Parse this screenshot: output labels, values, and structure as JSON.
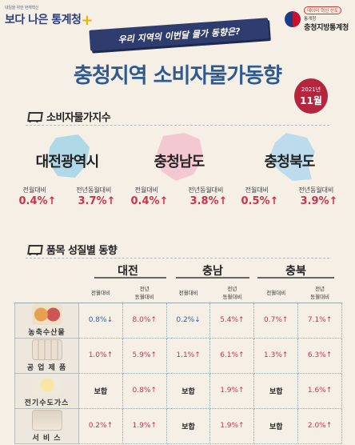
{
  "header": {
    "logo_small": "내일을 위한 현재혁신",
    "logo_main": "보다 나은 통계청",
    "logo_plus": "+",
    "badge": "데이터 혁신 선도",
    "org_small": "통계청",
    "org_name": "충청지방통계청"
  },
  "ribbon": "우리 지역의 이번달 물가 동향은?",
  "title": "충청지역 소비자물가동향",
  "date": {
    "year": "2021년",
    "month": "11월"
  },
  "cpi_section": {
    "heading": "소비자물가지수",
    "labels": {
      "mom": "전월대비",
      "yoy": "전년동월대비"
    },
    "regions": [
      {
        "name": "대전광역시",
        "mom": "0.4%↑",
        "yoy": "3.7%↑",
        "map_color": "#a9d7e8"
      },
      {
        "name": "충청남도",
        "mom": "0.4%↑",
        "yoy": "3.8%↑",
        "map_color": "#f3c4cf"
      },
      {
        "name": "충청북도",
        "mom": "0.5%↑",
        "yoy": "3.9%↑",
        "map_color": "#b6d9ee"
      }
    ]
  },
  "items_section": {
    "heading": "품목 성질별 동향",
    "regions": [
      "대전",
      "충남",
      "충북"
    ],
    "col_labels": {
      "mom": "전월대비",
      "yoy": "전년\n동월대비"
    },
    "rows": [
      {
        "name": "농축수산물",
        "icon": "farm-icon",
        "cells": [
          {
            "v": "0.8%↓",
            "t": "down"
          },
          {
            "v": "8.0%↑",
            "t": "up"
          },
          {
            "v": "0.2%↓",
            "t": "down"
          },
          {
            "v": "5.4%↑",
            "t": "up"
          },
          {
            "v": "0.7%↑",
            "t": "up"
          },
          {
            "v": "7.1%↑",
            "t": "up"
          }
        ]
      },
      {
        "name": "공 업 제 품",
        "icon": "industry-icon",
        "cells": [
          {
            "v": "1.0%↑",
            "t": "up"
          },
          {
            "v": "5.9%↑",
            "t": "up"
          },
          {
            "v": "1.1%↑",
            "t": "up"
          },
          {
            "v": "6.1%↑",
            "t": "up"
          },
          {
            "v": "1.3%↑",
            "t": "up"
          },
          {
            "v": "6.3%↑",
            "t": "up"
          }
        ]
      },
      {
        "name": "전기수도가스",
        "icon": "utility-icon",
        "cells": [
          {
            "v": "보합",
            "t": "flat"
          },
          {
            "v": "0.8%↑",
            "t": "up"
          },
          {
            "v": "보합",
            "t": "flat"
          },
          {
            "v": "1.9%↑",
            "t": "up"
          },
          {
            "v": "보합",
            "t": "flat"
          },
          {
            "v": "1.6%↑",
            "t": "up"
          }
        ]
      },
      {
        "name": "서 비 스",
        "icon": "service-icon",
        "cells": [
          {
            "v": "0.2%↑",
            "t": "up"
          },
          {
            "v": "1.9%↑",
            "t": "up"
          },
          {
            "v": "보합",
            "t": "flat"
          },
          {
            "v": "1.9%↑",
            "t": "up"
          },
          {
            "v": "보합",
            "t": "flat"
          },
          {
            "v": "2.0%↑",
            "t": "up"
          }
        ]
      }
    ]
  }
}
